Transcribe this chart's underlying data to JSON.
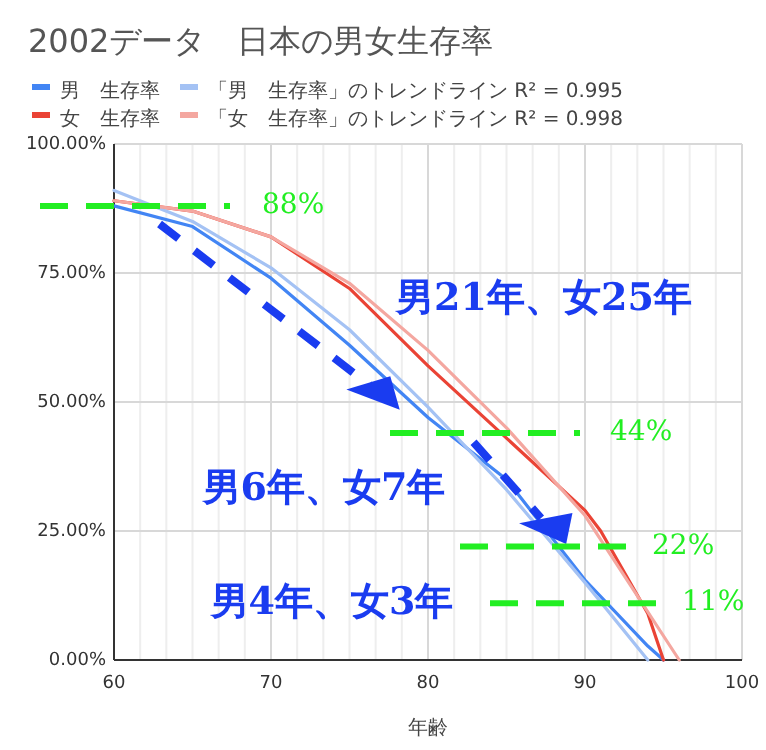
{
  "chart_data": {
    "type": "line",
    "title": "2002データ　日本の男女生存率",
    "xlabel": "年齢",
    "xlim": [
      60,
      100
    ],
    "xticks": [
      60,
      70,
      80,
      90,
      100
    ],
    "ylim": [
      0,
      100
    ],
    "yticks": [
      {
        "value": 0,
        "label": "0.00%"
      },
      {
        "value": 25,
        "label": "25.00%"
      },
      {
        "value": 50,
        "label": "50.00%"
      },
      {
        "value": 75,
        "label": "75.00%"
      },
      {
        "value": 100,
        "label": "100.00%"
      }
    ],
    "grid": true,
    "legend": "top",
    "marker": "none",
    "line_style": "solid",
    "series": [
      {
        "name": "男　生存率",
        "color": "#4285f4",
        "x": [
          60,
          65,
          70,
          75,
          80,
          85,
          90,
          94,
          95
        ],
        "values": [
          88,
          84,
          74,
          61,
          47,
          35,
          15.5,
          2.7,
          0
        ]
      },
      {
        "name": "女　生存率",
        "color": "#ea4335",
        "x": [
          60,
          65,
          70,
          75,
          80,
          85,
          90,
          91,
          94,
          95
        ],
        "values": [
          89,
          87,
          82,
          72,
          57,
          43,
          29,
          25,
          9,
          0
        ]
      },
      {
        "name": "「男　生存率」のトレンドライン R² = 0.995",
        "color": "#a4c2f4",
        "x": [
          60,
          65,
          70,
          75,
          80,
          85,
          90,
          94
        ],
        "values": [
          91,
          85,
          76,
          64,
          49,
          33,
          15,
          0
        ]
      },
      {
        "name": "「女　生存率」のトレンドライン R² = 0.998",
        "color": "#f4a7a0",
        "x": [
          60,
          65,
          70,
          75,
          80,
          85,
          90,
          96
        ],
        "values": [
          89,
          87,
          82,
          73,
          60,
          45,
          28,
          0
        ]
      }
    ],
    "ref_lines": [
      {
        "axis": "y",
        "value": 88,
        "label": "88%",
        "color": "#22ee22",
        "line_style": "dashed"
      },
      {
        "axis": "y",
        "value": 44,
        "label": "44%",
        "color": "#22ee22",
        "line_style": "dashed"
      },
      {
        "axis": "y",
        "value": 22,
        "label": "22%",
        "color": "#22ee22",
        "line_style": "dashed"
      },
      {
        "axis": "y",
        "value": 11,
        "label": "11%",
        "color": "#22ee22",
        "line_style": "dashed"
      }
    ],
    "annotations": [
      "男21年、女25年",
      "男6年、女7年",
      "男4年、女3年"
    ]
  }
}
